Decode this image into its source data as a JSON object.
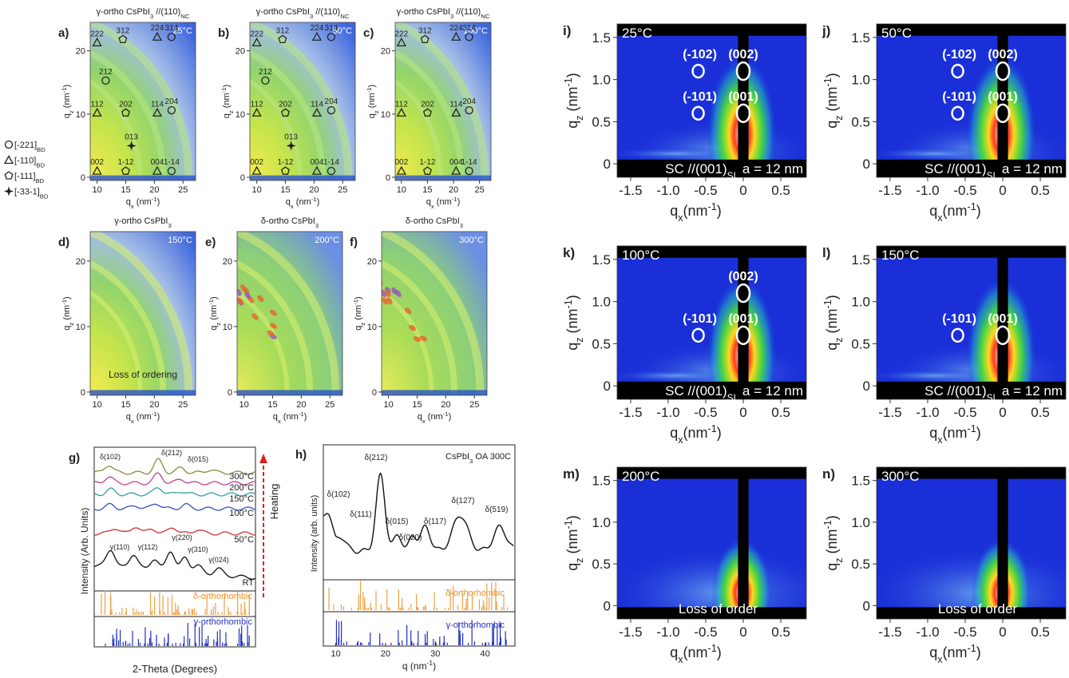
{
  "legend": [
    {
      "label": "[-221]",
      "sub": "BD"
    },
    {
      "label": "[-110]",
      "sub": "BD"
    },
    {
      "label": "[-111]",
      "sub": "BD"
    },
    {
      "label": "[-33-1]",
      "sub": "BD"
    }
  ],
  "gixd": {
    "xlim": [
      8.8,
      27.2
    ],
    "ylim": [
      -0.5,
      24.5
    ],
    "xticks": [
      10,
      15,
      20,
      25
    ],
    "yticks": [
      0,
      10,
      20
    ],
    "x_label": [
      {
        "t": "q"
      },
      {
        "t": "x",
        "s": "sub"
      },
      {
        "t": " (nm"
      },
      {
        "t": "-1",
        "s": "sup"
      },
      {
        "t": ")"
      }
    ],
    "y_label": [
      {
        "t": "q"
      },
      {
        "t": "z",
        "s": "sub"
      },
      {
        "t": " (nm"
      },
      {
        "t": "-1",
        "s": "sup"
      },
      {
        "t": ")"
      }
    ],
    "panels": [
      {
        "letter": "a)",
        "title": [
          {
            "t": "γ-ortho CsPbI"
          },
          {
            "t": "3",
            "s": "sub"
          },
          {
            "t": " //(110)"
          },
          {
            "t": "NC",
            "s": "sub"
          }
        ],
        "temp": "25°C",
        "peaks": [
          "222",
          "312",
          "224",
          "314",
          "212",
          "112",
          "202",
          "114",
          "204",
          "013",
          "002",
          "1-12",
          "004",
          "1-14"
        ]
      },
      {
        "letter": "b)",
        "title": [
          {
            "t": "γ-ortho CsPbI"
          },
          {
            "t": "3",
            "s": "sub"
          },
          {
            "t": " //(110)"
          },
          {
            "t": "NC",
            "s": "sub"
          }
        ],
        "temp": "50°C",
        "peaks": [
          "222",
          "312",
          "224",
          "314",
          "212",
          "112",
          "202",
          "114",
          "204",
          "013",
          "002",
          "1-12",
          "004",
          "1-14"
        ]
      },
      {
        "letter": "c)",
        "title": [
          {
            "t": "γ-ortho CsPbI"
          },
          {
            "t": "3",
            "s": "sub"
          },
          {
            "t": " //(110)"
          },
          {
            "t": "NC",
            "s": "sub"
          }
        ],
        "temp": "100°C",
        "peaks": [
          "222",
          "312",
          "224",
          "314",
          "112",
          "202",
          "114",
          "204",
          "002",
          "1-12",
          "004",
          "1-14"
        ]
      },
      {
        "letter": "d)",
        "title": [
          {
            "t": "γ-ortho CsPbI"
          },
          {
            "t": "3",
            "s": "sub"
          }
        ],
        "temp": "150°C",
        "note": "Loss of ordering"
      },
      {
        "letter": "e)",
        "title": [
          {
            "t": "δ-ortho CsPbI"
          },
          {
            "t": "3",
            "s": "sub"
          }
        ],
        "temp": "200°C"
      },
      {
        "letter": "f)",
        "title": [
          {
            "t": "δ-ortho CsPbI"
          },
          {
            "t": "3",
            "s": "sub"
          }
        ],
        "temp": "300°C"
      }
    ]
  },
  "gisaxs": {
    "xlim": [
      -1.68,
      0.84
    ],
    "ylim": [
      -0.16,
      1.66
    ],
    "xticks": [
      -1.5,
      {
        "value": -1,
        "label": "-1.0"
      },
      -0.5,
      0,
      0.5
    ],
    "yticks": [
      0,
      0.5,
      {
        "value": 1,
        "label": "1.0"
      },
      1.5
    ],
    "x_label": [
      {
        "t": "q"
      },
      {
        "t": "x",
        "s": "sub"
      },
      {
        "t": "(nm"
      },
      {
        "t": "-1",
        "s": "sup"
      },
      {
        "t": ")"
      }
    ],
    "y_label": [
      {
        "t": "q"
      },
      {
        "t": "z",
        "s": "sub"
      },
      {
        "t": " (nm"
      },
      {
        "t": "-1",
        "s": "sup"
      },
      {
        "t": ")"
      }
    ],
    "panels": [
      {
        "letter": "i)",
        "temp": "25°C",
        "peaks": [
          "(-102)",
          "(002)",
          "(-101)",
          "(001)"
        ],
        "footer": [
          {
            "t": "SC //(001)"
          },
          {
            "t": "SL",
            "s": "sub"
          },
          {
            "t": " a = 12 nm"
          }
        ]
      },
      {
        "letter": "j)",
        "temp": "50°C",
        "peaks": [
          "(-102)",
          "(002)",
          "(-101)",
          "(001)"
        ],
        "footer": [
          {
            "t": "SC //(001)"
          },
          {
            "t": "SL",
            "s": "sub"
          },
          {
            "t": " a = 12 nm"
          }
        ]
      },
      {
        "letter": "k)",
        "temp": "100°C",
        "peaks": [
          "(002)",
          "(-101)",
          "(001)"
        ],
        "footer": [
          {
            "t": "SC //(001)"
          },
          {
            "t": "SL",
            "s": "sub"
          },
          {
            "t": " a = 12 nm"
          }
        ]
      },
      {
        "letter": "l)",
        "temp": "150°C",
        "peaks": [
          "(-101)",
          "(001)"
        ],
        "footer": [
          {
            "t": "SC //(001)"
          },
          {
            "t": "SL",
            "s": "sub"
          },
          {
            "t": " a = 12 nm"
          }
        ]
      },
      {
        "letter": "m)",
        "temp": "200°C",
        "note": "Loss of order"
      },
      {
        "letter": "n)",
        "temp": "300°C",
        "note": "Loss of order"
      }
    ]
  },
  "xrd_g": {
    "letter": "g)",
    "x_label": "2-Theta (Degrees)",
    "y_label": "Intensity (Arb. Units)",
    "temps": [
      "300°C",
      "200°C",
      "150°C",
      "100°C",
      "50°C",
      "RT"
    ],
    "peaks": [
      "δ(102)",
      "δ(212)",
      "δ(015)",
      "γ(110)",
      "γ(112)",
      "γ(220)",
      "γ(310)",
      "γ(024)"
    ],
    "arrow_label": "Heating",
    "ref_labels": [
      "δ-orthorhombic",
      "γ-orthorhombic"
    ]
  },
  "xrd_h": {
    "letter": "h)",
    "title": [
      {
        "t": "CsPbI"
      },
      {
        "t": "3",
        "s": "sub"
      },
      {
        "t": " OA 300C"
      }
    ],
    "x_label": [
      {
        "t": "q (nm"
      },
      {
        "t": "-1",
        "s": "sup"
      },
      {
        "t": ")"
      }
    ],
    "y_label": "Intensity (arb. units)",
    "xlim": [
      7.5,
      46
    ],
    "xticks": [
      10,
      20,
      30,
      40
    ],
    "peaks": [
      "δ(102)",
      "δ(111)",
      "δ(212)",
      "δ(015)",
      "δ(020)",
      "δ(117)",
      "δ(127)",
      "δ(519)"
    ],
    "ref_labels": [
      "δ-orthorhombic",
      "γ-orthorhombic"
    ]
  }
}
